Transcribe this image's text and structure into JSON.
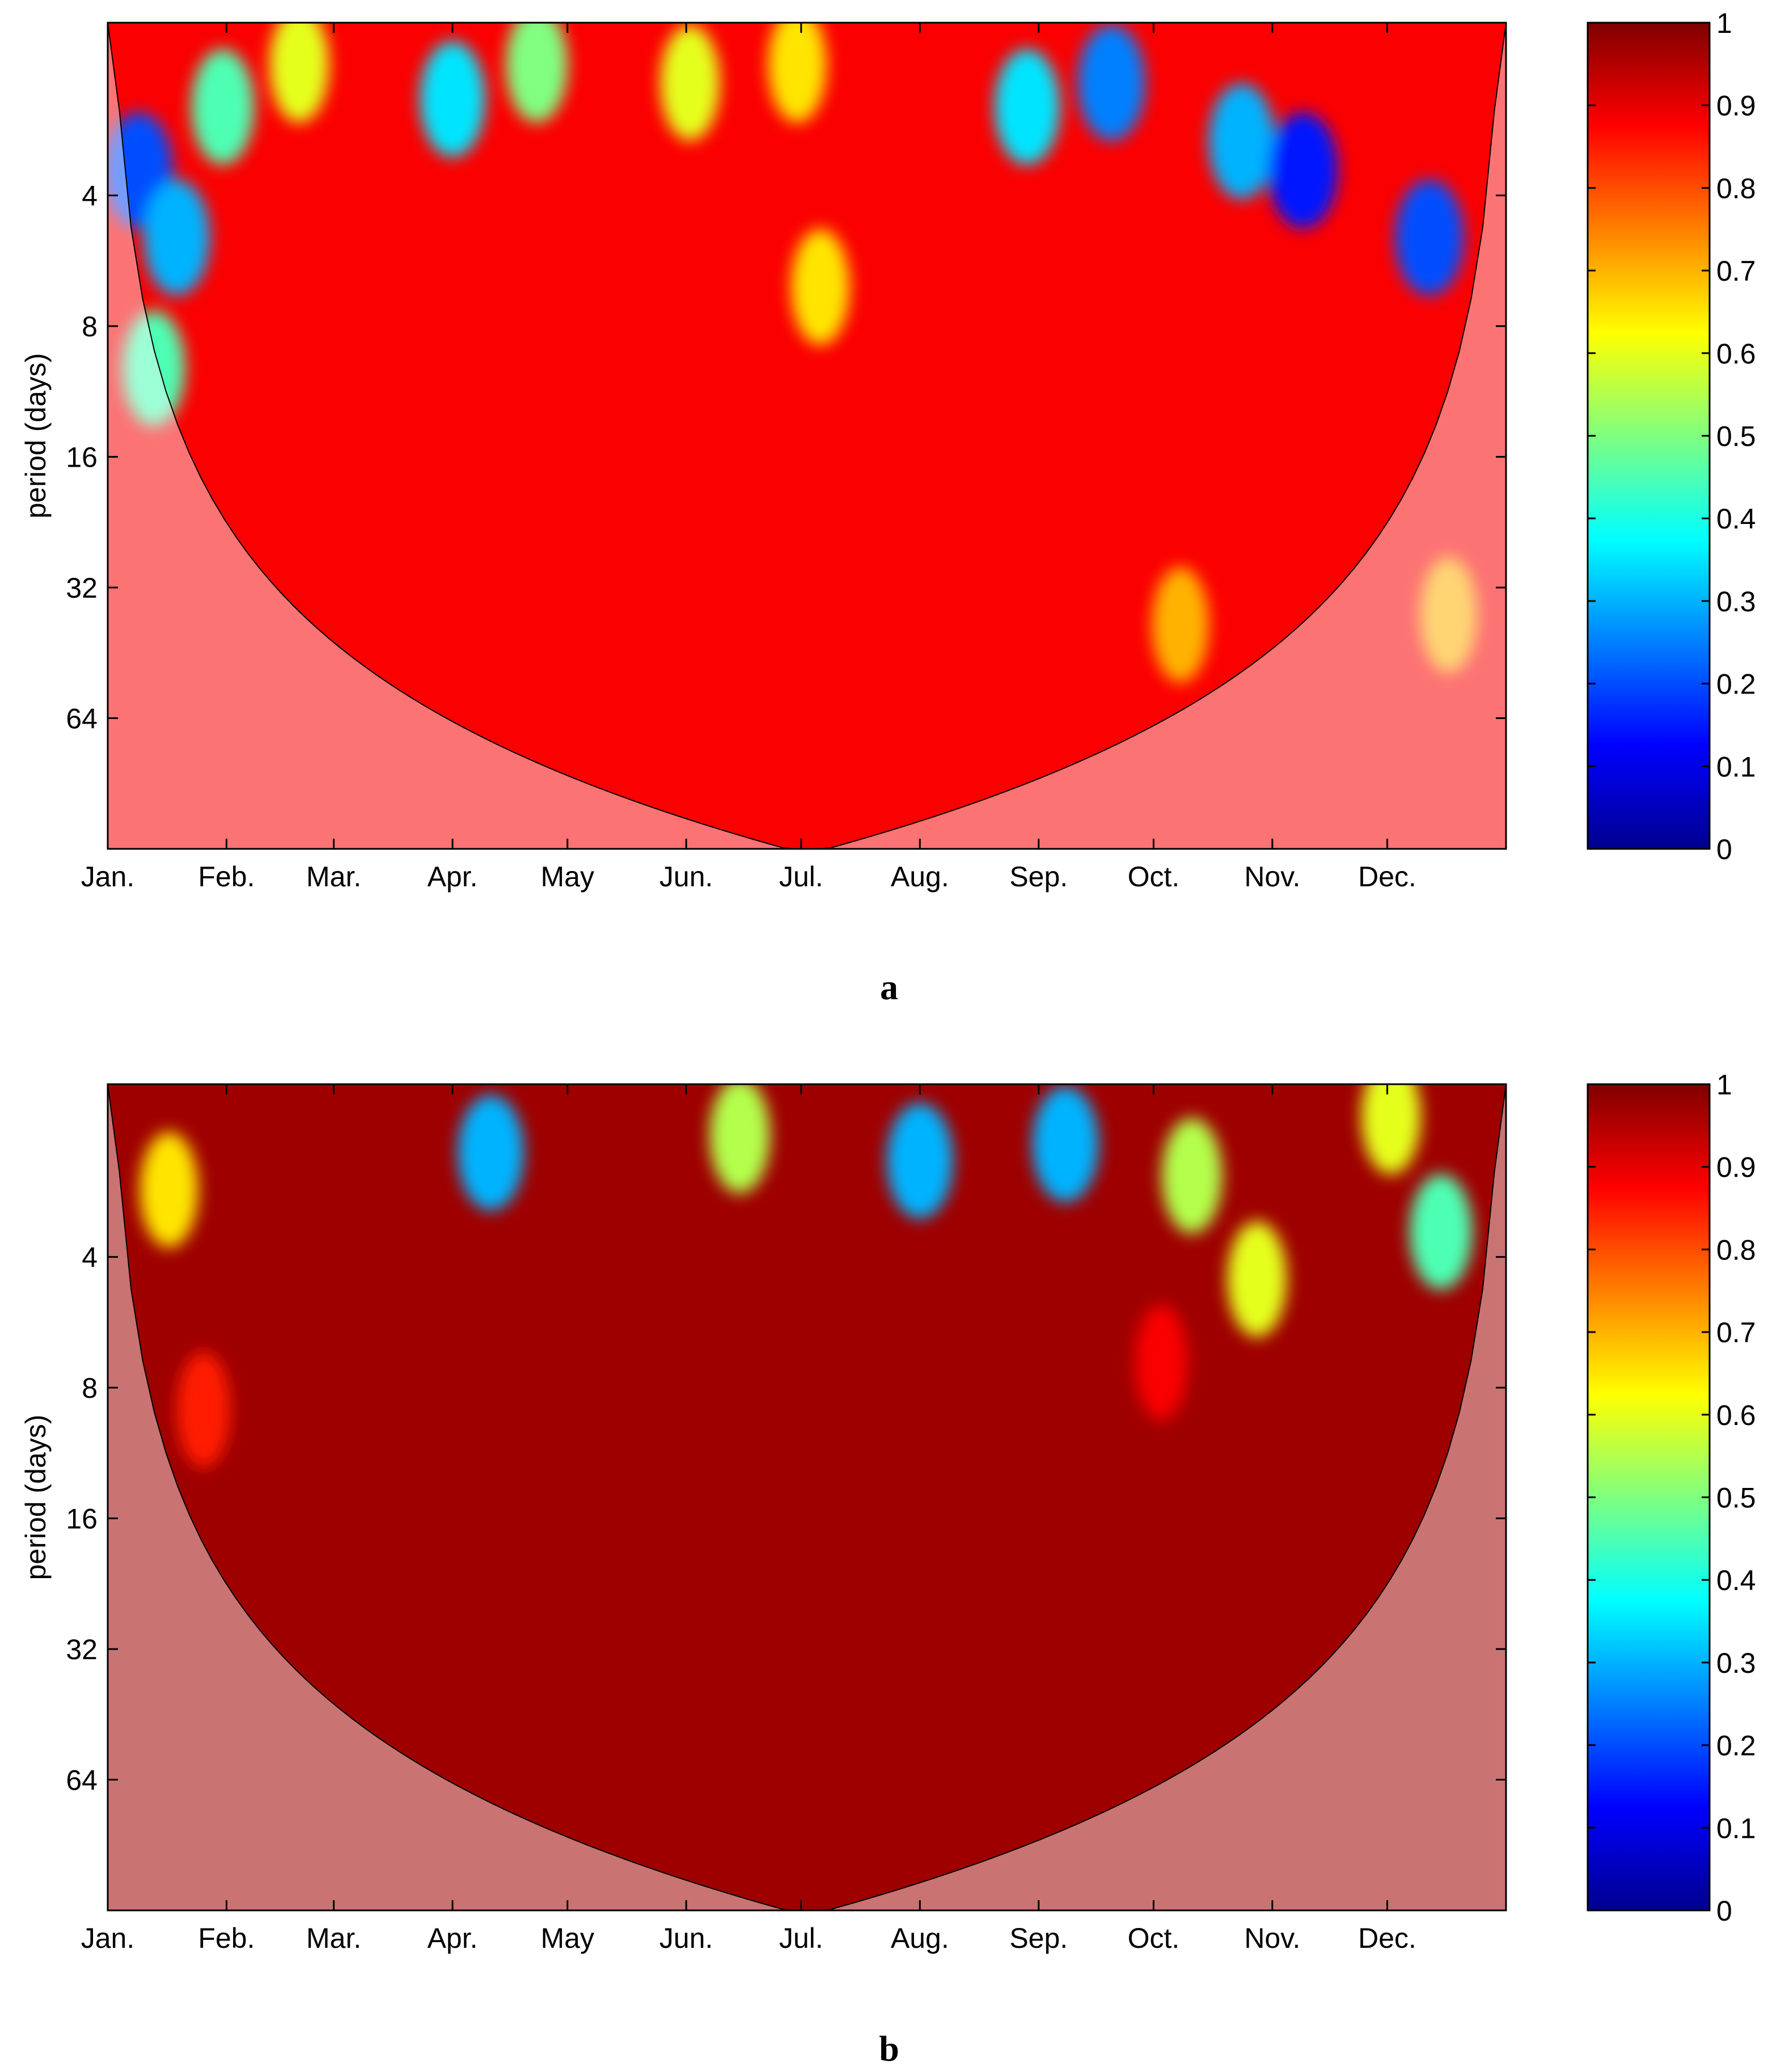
{
  "chart_data": [
    {
      "type": "heatmap",
      "panel_label": "a",
      "ylabel": "period (days)",
      "x_tick_labels": [
        "Jan.",
        "Feb.",
        "Mar.",
        "Apr.",
        "May",
        "Jun.",
        "Jul.",
        "Aug.",
        "Sep.",
        "Oct.",
        "Nov.",
        "Dec."
      ],
      "x_tick_days": [
        0,
        31,
        59,
        90,
        120,
        151,
        181,
        212,
        243,
        273,
        304,
        334
      ],
      "xlim_days": [
        0,
        365
      ],
      "y_tick_labels": [
        "4",
        "8",
        "16",
        "32",
        "64"
      ],
      "y_tick_values": [
        4,
        8,
        16,
        32,
        64
      ],
      "ylim": [
        1.6,
        128
      ],
      "y_scale": "log2",
      "y_reversed": true,
      "colorbar": {
        "min": 0,
        "max": 1,
        "ticks": [
          "0",
          "0.1",
          "0.2",
          "0.3",
          "0.4",
          "0.5",
          "0.6",
          "0.7",
          "0.8",
          "0.9",
          "1"
        ],
        "colormap": "jet"
      },
      "background_coherence": 0.88,
      "cone_of_influence": true,
      "low_coherence_blobs": [
        {
          "day": 8,
          "period": 3.5,
          "coherence": 0.2
        },
        {
          "day": 18,
          "period": 5.0,
          "coherence": 0.3
        },
        {
          "day": 12,
          "period": 10.0,
          "coherence": 0.45
        },
        {
          "day": 30,
          "period": 2.5,
          "coherence": 0.45
        },
        {
          "day": 50,
          "period": 2.0,
          "coherence": 0.6
        },
        {
          "day": 90,
          "period": 2.4,
          "coherence": 0.35
        },
        {
          "day": 112,
          "period": 2.0,
          "coherence": 0.5
        },
        {
          "day": 152,
          "period": 2.2,
          "coherence": 0.6
        },
        {
          "day": 180,
          "period": 2.0,
          "coherence": 0.65
        },
        {
          "day": 186,
          "period": 6.5,
          "coherence": 0.65
        },
        {
          "day": 240,
          "period": 2.5,
          "coherence": 0.35
        },
        {
          "day": 262,
          "period": 2.2,
          "coherence": 0.25
        },
        {
          "day": 296,
          "period": 3.0,
          "coherence": 0.3
        },
        {
          "day": 312,
          "period": 3.5,
          "coherence": 0.15
        },
        {
          "day": 345,
          "period": 5.0,
          "coherence": 0.2
        },
        {
          "day": 280,
          "period": 39.0,
          "coherence": 0.7
        },
        {
          "day": 350,
          "period": 37.0,
          "coherence": 0.7
        }
      ]
    },
    {
      "type": "heatmap",
      "panel_label": "b",
      "ylabel": "period (days)",
      "x_tick_labels": [
        "Jan.",
        "Feb.",
        "Mar.",
        "Apr.",
        "May",
        "Jun.",
        "Jul.",
        "Aug.",
        "Sep.",
        "Oct.",
        "Nov.",
        "Dec."
      ],
      "x_tick_days": [
        0,
        31,
        59,
        90,
        120,
        151,
        181,
        212,
        243,
        273,
        304,
        334
      ],
      "xlim_days": [
        0,
        365
      ],
      "y_tick_labels": [
        "4",
        "8",
        "16",
        "32",
        "64"
      ],
      "y_tick_values": [
        4,
        8,
        16,
        32,
        64
      ],
      "ylim": [
        1.6,
        128
      ],
      "y_scale": "log2",
      "y_reversed": true,
      "colorbar": {
        "min": 0,
        "max": 1,
        "ticks": [
          "0",
          "0.1",
          "0.2",
          "0.3",
          "0.4",
          "0.5",
          "0.6",
          "0.7",
          "0.8",
          "0.9",
          "1"
        ],
        "colormap": "jet"
      },
      "background_coherence": 0.97,
      "cone_of_influence": true,
      "low_coherence_blobs": [
        {
          "day": 16,
          "period": 2.8,
          "coherence": 0.65
        },
        {
          "day": 100,
          "period": 2.3,
          "coherence": 0.3
        },
        {
          "day": 165,
          "period": 2.1,
          "coherence": 0.55
        },
        {
          "day": 212,
          "period": 2.4,
          "coherence": 0.3
        },
        {
          "day": 250,
          "period": 2.2,
          "coherence": 0.3
        },
        {
          "day": 283,
          "period": 2.6,
          "coherence": 0.55
        },
        {
          "day": 300,
          "period": 4.5,
          "coherence": 0.6
        },
        {
          "day": 335,
          "period": 1.9,
          "coherence": 0.6
        },
        {
          "day": 348,
          "period": 3.5,
          "coherence": 0.45
        },
        {
          "day": 25,
          "period": 9.0,
          "coherence": 0.85
        },
        {
          "day": 275,
          "period": 7.0,
          "coherence": 0.88
        }
      ]
    }
  ]
}
